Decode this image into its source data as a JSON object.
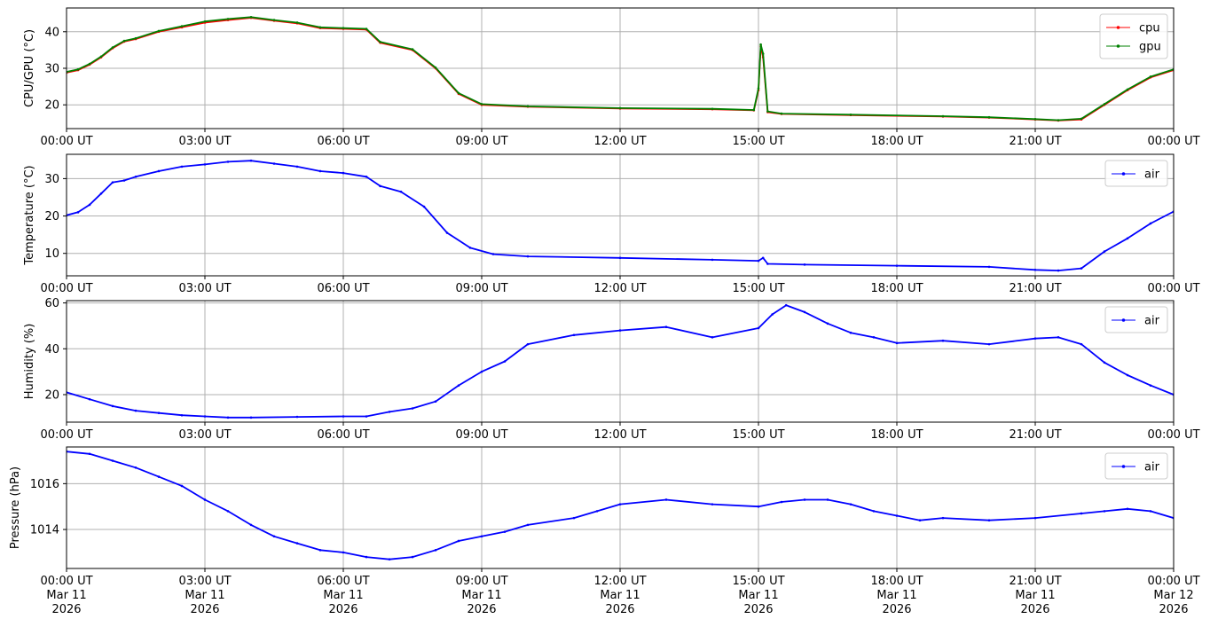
{
  "x_tick_labels": [
    "00:00 UT",
    "03:00 UT",
    "06:00 UT",
    "09:00 UT",
    "12:00 UT",
    "15:00 UT",
    "18:00 UT",
    "21:00 UT",
    "00:00 UT"
  ],
  "x_date_labels": [
    [
      "Mar 11",
      "2026"
    ],
    [
      "Mar 11",
      "2026"
    ],
    [
      "Mar 11",
      "2026"
    ],
    [
      "Mar 11",
      "2026"
    ],
    [
      "Mar 11",
      "2026"
    ],
    [
      "Mar 11",
      "2026"
    ],
    [
      "Mar 11",
      "2026"
    ],
    [
      "Mar 11",
      "2026"
    ],
    [
      "Mar 12",
      "2026"
    ]
  ],
  "colors": {
    "cpu": "#ff0000",
    "gpu": "#008000",
    "air": "#0000ff",
    "grid": "#b0b0b0"
  },
  "chart_data": [
    {
      "type": "line",
      "ylabel": "CPU/GPU (°C)",
      "x_unit": "hours (UT)",
      "xlim": [
        0,
        24
      ],
      "ylim": [
        13.5,
        46.5
      ],
      "yticks": [
        20,
        30,
        40
      ],
      "grid": true,
      "legend": "top-right",
      "series": [
        {
          "name": "cpu",
          "color": "#ff0000",
          "x": [
            0,
            0.25,
            0.5,
            0.75,
            1,
            1.25,
            1.5,
            2,
            2.5,
            3,
            3.5,
            4,
            4.5,
            5,
            5.5,
            6,
            6.5,
            6.8,
            7.5,
            8,
            8.5,
            9,
            10,
            12,
            14,
            14.9,
            15.0,
            15.05,
            15.1,
            15.2,
            15.5,
            17,
            19,
            20,
            21,
            21.5,
            22,
            22.5,
            23,
            23.5,
            24
          ],
          "y": [
            28.8,
            29.5,
            31,
            33,
            35.5,
            37.3,
            38,
            40,
            41.2,
            42.5,
            43.2,
            43.8,
            43,
            42.3,
            41,
            40.8,
            40.6,
            37,
            35,
            30,
            23,
            20,
            19.5,
            19,
            18.8,
            18.5,
            24,
            36,
            33,
            18,
            17.5,
            17.2,
            16.8,
            16.5,
            16,
            15.7,
            16,
            20,
            24,
            27.5,
            29.5
          ]
        },
        {
          "name": "gpu",
          "color": "#008000",
          "x": [
            0,
            0.25,
            0.5,
            0.75,
            1,
            1.25,
            1.5,
            2,
            2.5,
            3,
            3.5,
            4,
            4.5,
            5,
            5.5,
            6,
            6.5,
            6.8,
            7.5,
            8,
            8.5,
            9,
            10,
            12,
            14,
            14.9,
            15.0,
            15.05,
            15.1,
            15.2,
            15.5,
            17,
            19,
            20,
            21,
            21.5,
            22,
            22.5,
            23,
            23.5,
            24
          ],
          "y": [
            29,
            29.7,
            31.2,
            33.2,
            35.7,
            37.5,
            38.2,
            40.2,
            41.5,
            42.8,
            43.5,
            44,
            43.2,
            42.5,
            41.2,
            41,
            40.8,
            37.2,
            35.2,
            30.2,
            23.2,
            20.2,
            19.6,
            19.1,
            18.9,
            18.6,
            24.5,
            36.5,
            34,
            18.2,
            17.6,
            17.3,
            16.9,
            16.6,
            16.1,
            15.8,
            16.2,
            20.2,
            24.2,
            27.7,
            29.7
          ]
        }
      ]
    },
    {
      "type": "line",
      "ylabel": "Temperature (°C)",
      "x_unit": "hours (UT)",
      "xlim": [
        0,
        24
      ],
      "ylim": [
        4,
        36.5
      ],
      "yticks": [
        10,
        20,
        30
      ],
      "grid": true,
      "legend": "top-right",
      "series": [
        {
          "name": "air",
          "color": "#0000ff",
          "x": [
            0,
            0.25,
            0.5,
            0.75,
            1,
            1.25,
            1.5,
            2,
            2.5,
            3,
            3.5,
            4,
            4.5,
            5,
            5.5,
            6,
            6.5,
            6.8,
            7.25,
            7.75,
            8.25,
            8.75,
            9.25,
            10,
            12,
            14,
            15,
            15.1,
            15.2,
            16,
            18,
            20,
            21,
            21.5,
            22,
            22.5,
            23,
            23.5,
            24
          ],
          "y": [
            20.2,
            21,
            23,
            26,
            29,
            29.5,
            30.5,
            32,
            33.2,
            33.8,
            34.5,
            34.8,
            34,
            33.2,
            32,
            31.5,
            30.5,
            28,
            26.5,
            22.5,
            15.5,
            11.5,
            9.8,
            9.2,
            8.8,
            8.3,
            8,
            8.8,
            7.2,
            7,
            6.7,
            6.4,
            5.6,
            5.4,
            6,
            10.5,
            14,
            18,
            21.2
          ]
        }
      ]
    },
    {
      "type": "line",
      "ylabel": "Humidity (%)",
      "x_unit": "hours (UT)",
      "xlim": [
        0,
        24
      ],
      "ylim": [
        8,
        61
      ],
      "yticks": [
        20,
        40,
        60
      ],
      "grid": true,
      "legend": "top-right",
      "series": [
        {
          "name": "air",
          "color": "#0000ff",
          "x": [
            0,
            0.5,
            1,
            1.5,
            2,
            2.5,
            3,
            3.5,
            4,
            5,
            6,
            6.5,
            7,
            7.5,
            8,
            8.5,
            9,
            9.5,
            10,
            11,
            12,
            13,
            14,
            15,
            15.3,
            15.6,
            16,
            16.5,
            17,
            17.5,
            18,
            19,
            20,
            21,
            21.5,
            22,
            22.5,
            23,
            23.5,
            24
          ],
          "y": [
            21,
            18,
            15,
            13,
            12,
            11,
            10.5,
            10,
            10,
            10.3,
            10.5,
            10.5,
            12.5,
            14,
            17,
            24,
            30,
            34.5,
            42,
            46,
            48,
            49.5,
            45,
            49,
            55,
            59,
            56,
            51,
            47,
            45,
            42.5,
            43.5,
            42,
            44.5,
            45,
            42,
            34,
            28.5,
            24,
            20
          ]
        }
      ]
    },
    {
      "type": "line",
      "ylabel": "Pressure (hPa)",
      "x_unit": "hours (UT)",
      "xlim": [
        0,
        24
      ],
      "ylim": [
        1012.3,
        1017.6
      ],
      "yticks": [
        1014,
        1016
      ],
      "grid": true,
      "legend": "top-right",
      "series": [
        {
          "name": "air",
          "color": "#0000ff",
          "x": [
            0,
            0.5,
            1,
            1.5,
            2,
            2.5,
            3,
            3.5,
            4,
            4.5,
            5,
            5.5,
            6,
            6.5,
            7,
            7.5,
            8,
            8.5,
            9,
            9.5,
            10,
            11,
            11.5,
            12,
            13,
            14,
            15,
            15.5,
            16,
            16.5,
            17,
            17.5,
            18,
            18.5,
            19,
            20,
            21,
            22,
            22.5,
            23,
            23.5,
            24
          ],
          "y": [
            1017.4,
            1017.3,
            1017,
            1016.7,
            1016.3,
            1015.9,
            1015.3,
            1014.8,
            1014.2,
            1013.7,
            1013.4,
            1013.1,
            1013,
            1012.8,
            1012.7,
            1012.8,
            1013.1,
            1013.5,
            1013.7,
            1013.9,
            1014.2,
            1014.5,
            1014.8,
            1015.1,
            1015.3,
            1015.1,
            1015.0,
            1015.2,
            1015.3,
            1015.3,
            1015.1,
            1014.8,
            1014.6,
            1014.4,
            1014.5,
            1014.4,
            1014.5,
            1014.7,
            1014.8,
            1014.9,
            1014.8,
            1014.5
          ]
        }
      ]
    }
  ]
}
